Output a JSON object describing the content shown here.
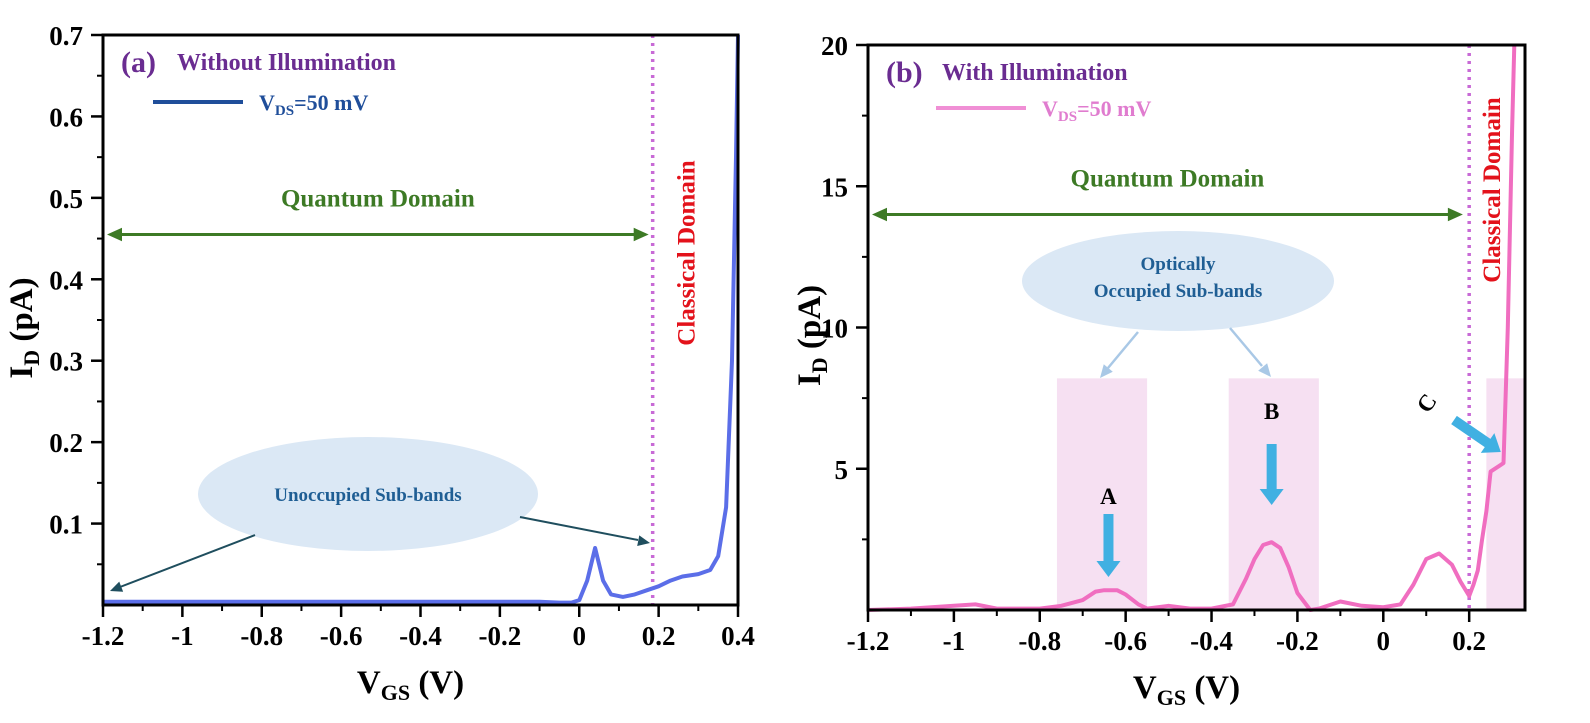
{
  "chart_data": [
    {
      "panel": "(a)",
      "type": "line",
      "title": "Without Illumination",
      "xlabel": "V",
      "xlabel_sub": "GS",
      "xlabel_unit": " (V)",
      "ylabel": "I",
      "ylabel_sub": "D",
      "ylabel_unit": " (pA)",
      "xlim": [
        -1.2,
        0.4
      ],
      "ylim": [
        0.0,
        0.7
      ],
      "xticks": [
        -1.2,
        -1.0,
        -0.8,
        -0.6,
        -0.4,
        -0.2,
        0.0,
        0.2,
        0.4
      ],
      "xtick_labels": [
        "-1.2",
        "-1",
        "-0.8",
        "-0.6",
        "-0.4",
        "-0.2",
        "0",
        "0.2",
        "0.4"
      ],
      "yticks": [
        0.1,
        0.2,
        0.3,
        0.4,
        0.5,
        0.6,
        0.7
      ],
      "ytick_labels": [
        "0.1",
        "0.2",
        "0.3",
        "0.4",
        "0.5",
        "0.6",
        "0.7"
      ],
      "legend": {
        "base": "V",
        "sub": "DS",
        "rest": "=50 mV",
        "color": "#1f4e9a"
      },
      "series": [
        {
          "name": "VDS=50 mV",
          "color": "#5b6ee8",
          "x": [
            -1.2,
            -1.0,
            -0.8,
            -0.6,
            -0.4,
            -0.2,
            -0.1,
            -0.05,
            -0.02,
            0.0,
            0.02,
            0.04,
            0.06,
            0.08,
            0.11,
            0.14,
            0.17,
            0.2,
            0.23,
            0.26,
            0.3,
            0.33,
            0.35,
            0.37,
            0.385,
            0.395,
            0.4
          ],
          "y": [
            0.004,
            0.004,
            0.004,
            0.004,
            0.004,
            0.004,
            0.004,
            0.003,
            0.003,
            0.006,
            0.03,
            0.07,
            0.03,
            0.013,
            0.01,
            0.013,
            0.018,
            0.023,
            0.03,
            0.035,
            0.038,
            0.043,
            0.06,
            0.12,
            0.3,
            0.55,
            0.7
          ]
        }
      ],
      "annotations": {
        "quantum_label": "Quantum Domain",
        "quantum_range": [
          -1.2,
          0.18
        ],
        "quantum_y": 0.455,
        "classical_label": "Classical Domain",
        "boundary_x": 0.185,
        "ellipse_label": "Unoccupied Sub-bands"
      }
    },
    {
      "panel": "(b)",
      "type": "line",
      "title": "With Illumination",
      "xlabel": "V",
      "xlabel_sub": "GS",
      "xlabel_unit": " (V)",
      "ylabel": "I",
      "ylabel_sub": "D",
      "ylabel_unit": " (pA)",
      "xlim": [
        -1.2,
        0.33
      ],
      "ylim": [
        0,
        20
      ],
      "xticks": [
        -1.2,
        -1.0,
        -0.8,
        -0.6,
        -0.4,
        -0.2,
        0.0,
        0.2
      ],
      "xtick_labels": [
        "-1.2",
        "-1",
        "-0.8",
        "-0.6",
        "-0.4",
        "-0.2",
        "0",
        "0.2"
      ],
      "yticks": [
        5,
        10,
        15,
        20
      ],
      "ytick_labels": [
        "5",
        "10",
        "15",
        "20"
      ],
      "legend": {
        "base": "V",
        "sub": "DS",
        "rest": "=50 mV",
        "color": "#e07ccf"
      },
      "series": [
        {
          "name": "VDS=50 mV",
          "color": "#f06ec0",
          "x": [
            -1.2,
            -1.1,
            -1.0,
            -0.95,
            -0.9,
            -0.8,
            -0.75,
            -0.7,
            -0.67,
            -0.65,
            -0.62,
            -0.6,
            -0.57,
            -0.55,
            -0.5,
            -0.45,
            -0.4,
            -0.35,
            -0.32,
            -0.3,
            -0.28,
            -0.26,
            -0.24,
            -0.22,
            -0.2,
            -0.17,
            -0.15,
            -0.1,
            -0.05,
            0.0,
            0.04,
            0.07,
            0.1,
            0.13,
            0.16,
            0.18,
            0.2,
            0.21,
            0.22,
            0.23,
            0.24,
            0.25,
            0.27,
            0.28,
            0.29,
            0.3,
            0.305
          ],
          "y": [
            0.0,
            0.05,
            0.15,
            0.2,
            0.05,
            0.05,
            0.15,
            0.35,
            0.65,
            0.7,
            0.7,
            0.55,
            0.2,
            0.05,
            0.15,
            0.05,
            0.05,
            0.2,
            1.1,
            1.8,
            2.3,
            2.4,
            2.2,
            1.5,
            0.6,
            0.0,
            0.05,
            0.3,
            0.15,
            0.1,
            0.2,
            0.9,
            1.8,
            2.0,
            1.6,
            1.0,
            0.5,
            0.9,
            1.4,
            2.5,
            3.5,
            4.9,
            5.1,
            5.2,
            10.0,
            17.0,
            20.0
          ]
        }
      ],
      "annotations": {
        "quantum_label": "Quantum Domain",
        "quantum_range": [
          -1.2,
          0.19
        ],
        "quantum_y": 14.0,
        "classical_label": "Classical Domain",
        "boundary_x": 0.2,
        "ellipse_label_line1": "Optically",
        "ellipse_label_line2": "Occupied Sub-bands",
        "peaks": [
          {
            "label": "A",
            "x": -0.64
          },
          {
            "label": "B",
            "x": -0.26
          },
          {
            "label": "C",
            "x": 0.255
          }
        ],
        "highlight_bands": [
          [
            -0.76,
            -0.55
          ],
          [
            -0.36,
            -0.15
          ],
          [
            0.24,
            0.33
          ]
        ],
        "highlight_top": 8.2
      }
    }
  ]
}
